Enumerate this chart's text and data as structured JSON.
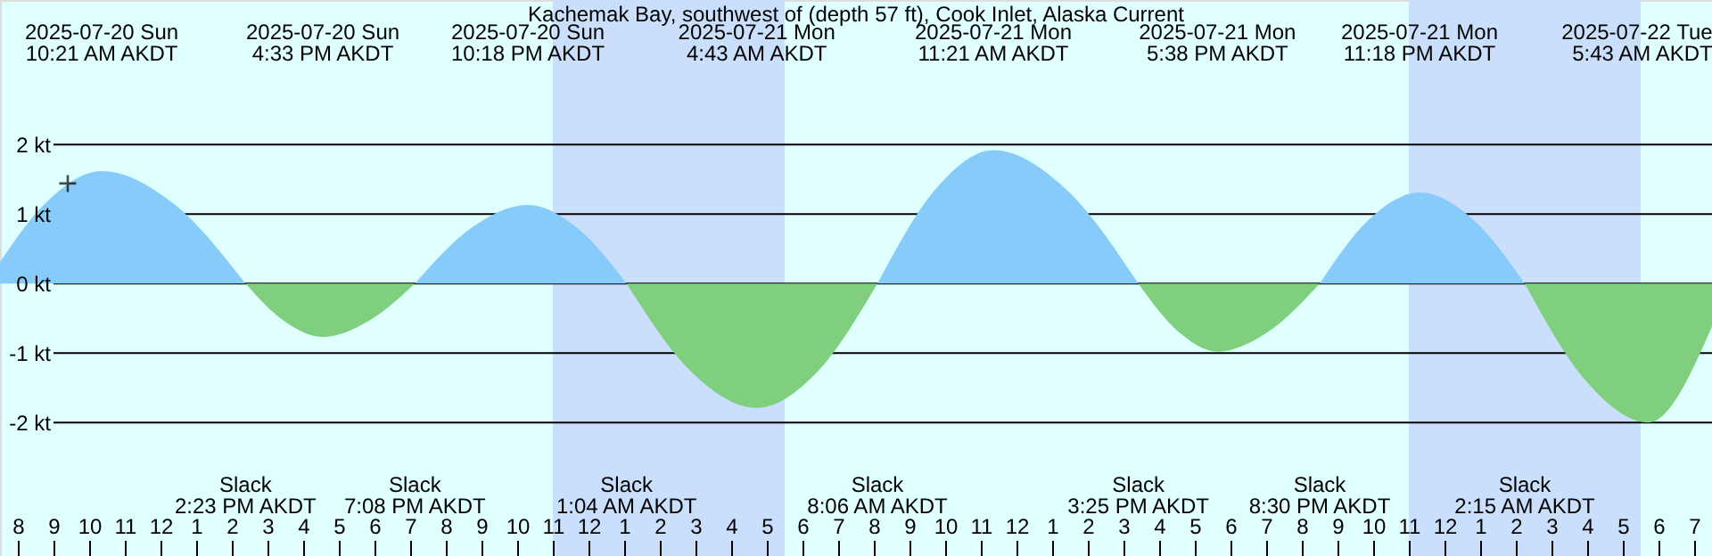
{
  "chart_data": {
    "type": "area",
    "title": "Kachemak Bay, southwest of (depth 57 ft), Cook Inlet, Alaska Current",
    "x": [
      "2025-07-20T07:30",
      "2025-07-20T08:42",
      "2025-07-20T10:21",
      "2025-07-20T12:22",
      "2025-07-20T14:23",
      "2025-07-20T15:28",
      "2025-07-20T16:33",
      "2025-07-20T17:50",
      "2025-07-20T19:08",
      "2025-07-20T20:43",
      "2025-07-20T22:18",
      "2025-07-20T23:41",
      "2025-07-21T01:04",
      "2025-07-21T02:53",
      "2025-07-21T04:43",
      "2025-07-21T06:25",
      "2025-07-21T08:06",
      "2025-07-21T09:44",
      "2025-07-21T11:21",
      "2025-07-21T13:23",
      "2025-07-21T15:25",
      "2025-07-21T16:32",
      "2025-07-21T17:38",
      "2025-07-21T19:04",
      "2025-07-21T20:30",
      "2025-07-21T21:54",
      "2025-07-21T23:18",
      "2025-07-22T00:47",
      "2025-07-22T02:15",
      "2025-07-22T03:59",
      "2025-07-22T05:43",
      "2025-07-22T07:30"
    ],
    "series": [
      {
        "color": "#87cbfa",
        "values": [
          0.31,
          1.12,
          1.62,
          1.15,
          0,
          null,
          null,
          null,
          0,
          0.8,
          1.13,
          0.8,
          0,
          null,
          null,
          null,
          0,
          1.36,
          1.92,
          1.36,
          0,
          null,
          null,
          null,
          0,
          0.93,
          1.31,
          0.93,
          0,
          null,
          null,
          null
        ]
      },
      {
        "color": "#7fcf7f",
        "values": [
          null,
          null,
          null,
          null,
          0,
          -0.54,
          -0.77,
          -0.54,
          0,
          null,
          null,
          null,
          0,
          -1.27,
          -1.79,
          -1.27,
          0,
          null,
          null,
          null,
          0,
          -0.69,
          -0.98,
          -0.69,
          0,
          null,
          null,
          null,
          0,
          -1.41,
          -2.0,
          -0.62
        ]
      },
      {
        "type": "scatter",
        "marker": "cross",
        "color": "#000000",
        "x": [
          "2025-07-20T09:24"
        ],
        "values": [
          1.44
        ]
      }
    ],
    "xlim": [
      "2025-07-20T07:30",
      "2025-07-22T07:30"
    ],
    "ylim": [
      -3.92,
      4.08
    ],
    "yticks": [
      {
        "value": 2,
        "label": "2 kt"
      },
      {
        "value": 1,
        "label": "1 kt"
      },
      {
        "value": 0,
        "label": "0 kt"
      },
      {
        "value": -1,
        "label": "-1 kt"
      },
      {
        "value": -2,
        "label": "-2 kt"
      }
    ],
    "xticks": [
      {
        "value": "2025-07-20T08:00",
        "label": "8"
      },
      {
        "value": "2025-07-20T09:00",
        "label": "9"
      },
      {
        "value": "2025-07-20T10:00",
        "label": "10"
      },
      {
        "value": "2025-07-20T11:00",
        "label": "11"
      },
      {
        "value": "2025-07-20T12:00",
        "label": "12"
      },
      {
        "value": "2025-07-20T13:00",
        "label": "1"
      },
      {
        "value": "2025-07-20T14:00",
        "label": "2"
      },
      {
        "value": "2025-07-20T15:00",
        "label": "3"
      },
      {
        "value": "2025-07-20T16:00",
        "label": "4"
      },
      {
        "value": "2025-07-20T17:00",
        "label": "5"
      },
      {
        "value": "2025-07-20T18:00",
        "label": "6"
      },
      {
        "value": "2025-07-20T19:00",
        "label": "7"
      },
      {
        "value": "2025-07-20T20:00",
        "label": "8"
      },
      {
        "value": "2025-07-20T21:00",
        "label": "9"
      },
      {
        "value": "2025-07-20T22:00",
        "label": "10"
      },
      {
        "value": "2025-07-20T23:00",
        "label": "11"
      },
      {
        "value": "2025-07-21T00:00",
        "label": "12"
      },
      {
        "value": "2025-07-21T01:00",
        "label": "1"
      },
      {
        "value": "2025-07-21T02:00",
        "label": "2"
      },
      {
        "value": "2025-07-21T03:00",
        "label": "3"
      },
      {
        "value": "2025-07-21T04:00",
        "label": "4"
      },
      {
        "value": "2025-07-21T05:00",
        "label": "5"
      },
      {
        "value": "2025-07-21T06:00",
        "label": "6"
      },
      {
        "value": "2025-07-21T07:00",
        "label": "7"
      },
      {
        "value": "2025-07-21T08:00",
        "label": "8"
      },
      {
        "value": "2025-07-21T09:00",
        "label": "9"
      },
      {
        "value": "2025-07-21T10:00",
        "label": "10"
      },
      {
        "value": "2025-07-21T11:00",
        "label": "11"
      },
      {
        "value": "2025-07-21T12:00",
        "label": "12"
      },
      {
        "value": "2025-07-21T13:00",
        "label": "1"
      },
      {
        "value": "2025-07-21T14:00",
        "label": "2"
      },
      {
        "value": "2025-07-21T15:00",
        "label": "3"
      },
      {
        "value": "2025-07-21T16:00",
        "label": "4"
      },
      {
        "value": "2025-07-21T17:00",
        "label": "5"
      },
      {
        "value": "2025-07-21T18:00",
        "label": "6"
      },
      {
        "value": "2025-07-21T19:00",
        "label": "7"
      },
      {
        "value": "2025-07-21T20:00",
        "label": "8"
      },
      {
        "value": "2025-07-21T21:00",
        "label": "9"
      },
      {
        "value": "2025-07-21T22:00",
        "label": "10"
      },
      {
        "value": "2025-07-21T23:00",
        "label": "11"
      },
      {
        "value": "2025-07-22T00:00",
        "label": "12"
      },
      {
        "value": "2025-07-22T01:00",
        "label": "1"
      },
      {
        "value": "2025-07-22T02:00",
        "label": "2"
      },
      {
        "value": "2025-07-22T03:00",
        "label": "3"
      },
      {
        "value": "2025-07-22T04:00",
        "label": "4"
      },
      {
        "value": "2025-07-22T05:00",
        "label": "5"
      },
      {
        "value": "2025-07-22T06:00",
        "label": "6"
      },
      {
        "value": "2025-07-22T07:00",
        "label": "7"
      }
    ],
    "grid": "y",
    "bands": [
      {
        "axis": "x",
        "from": "2025-07-20T23:00",
        "to": "2025-07-21T05:30",
        "color": "#c9dffc"
      },
      {
        "axis": "x",
        "from": "2025-07-21T23:00",
        "to": "2025-07-22T05:30",
        "color": "#c9dffc"
      }
    ],
    "annotations": [
      "2025-07-20 Sun\n10:21 AM AKDT",
      "2025-07-20 Sun\n4:33 PM AKDT",
      "2025-07-20 Sun\n10:18 PM AKDT",
      "2025-07-21 Mon\n4:43 AM AKDT",
      "2025-07-21 Mon\n11:21 AM AKDT",
      "2025-07-21 Mon\n5:38 PM AKDT",
      "2025-07-21 Mon\n11:18 PM AKDT",
      "2025-07-22 Tue\n5:43 AM AKDT",
      "Slack\n2:23 PM AKDT",
      "Slack\n7:08 PM AKDT",
      "Slack\n1:04 AM AKDT",
      "Slack\n8:06 AM AKDT",
      "Slack\n3:25 PM AKDT",
      "Slack\n8:30 PM AKDT",
      "Slack\n2:15 AM AKDT"
    ]
  }
}
